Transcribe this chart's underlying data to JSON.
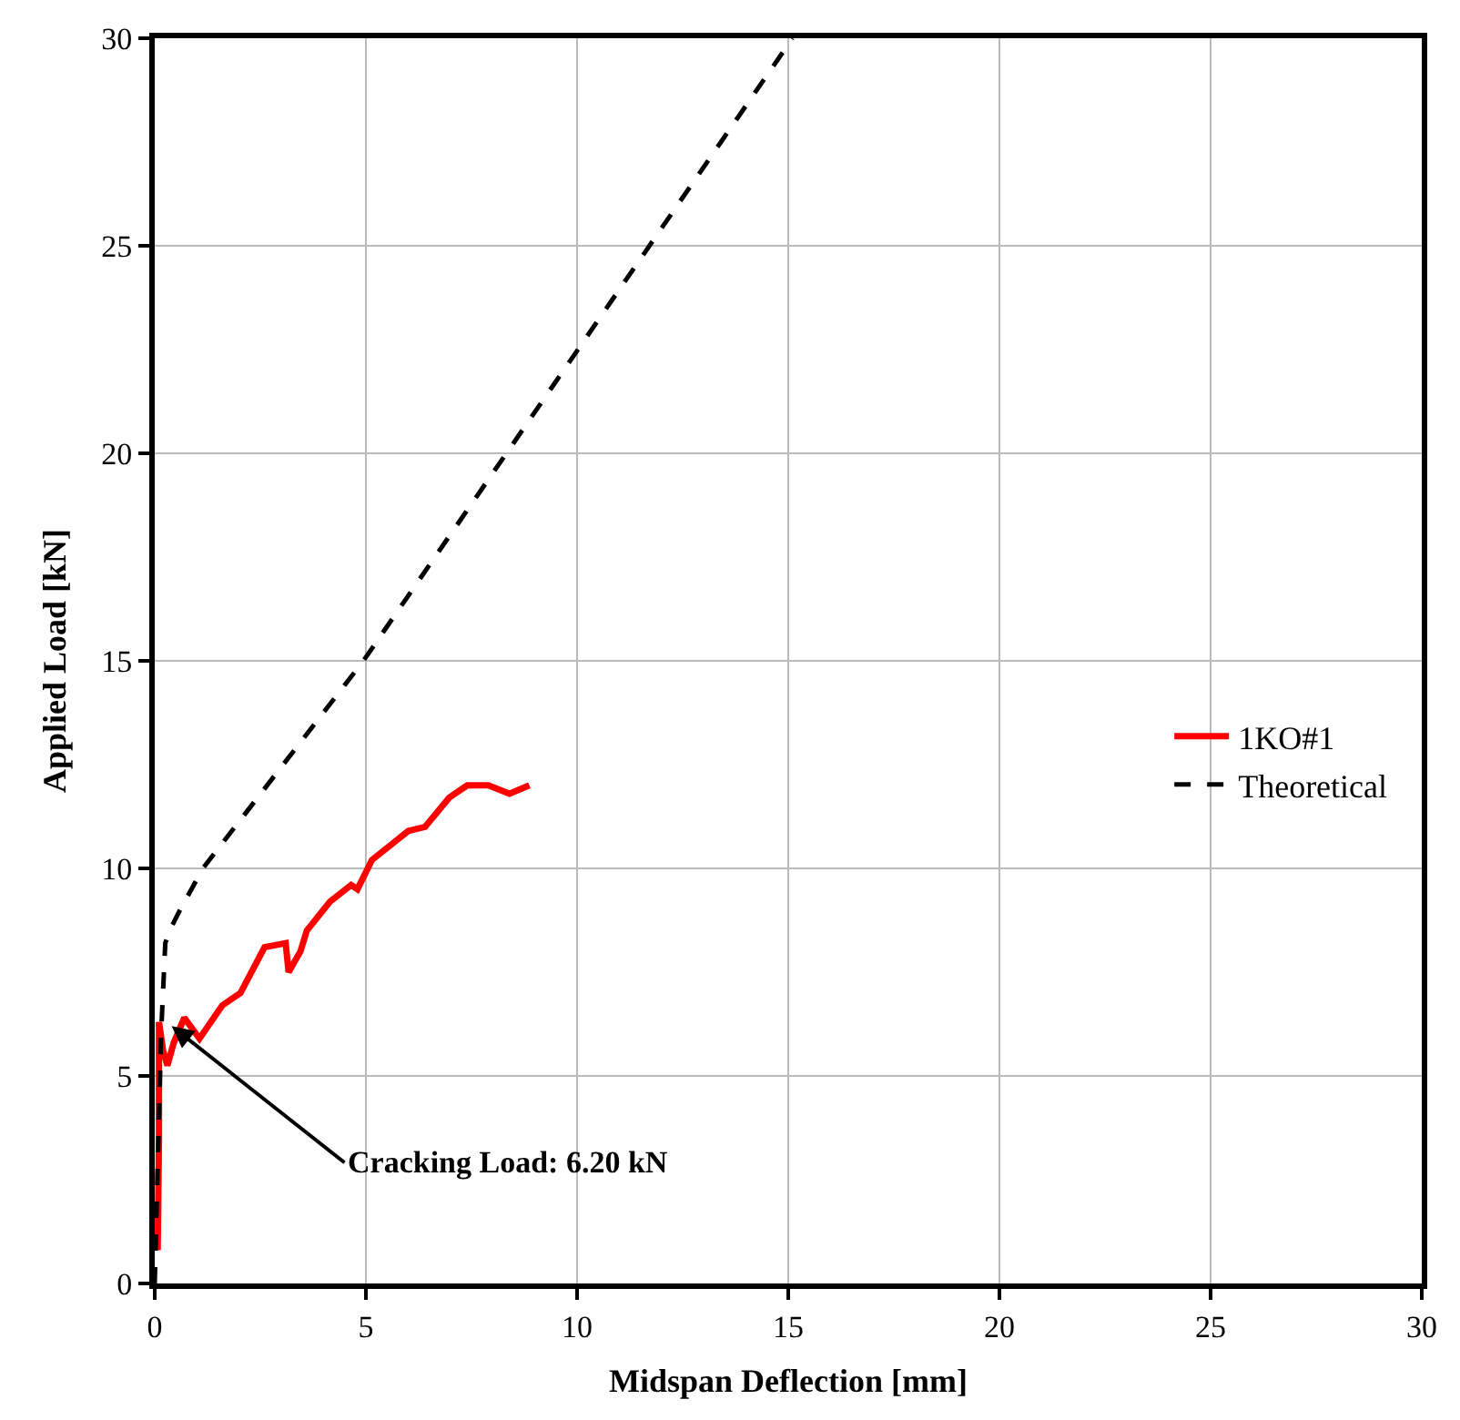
{
  "chart_data": {
    "type": "line",
    "xlabel": "Midspan Deflection [mm]",
    "ylabel": "Applied Load [kN]",
    "xlim": [
      0,
      30
    ],
    "ylim": [
      0,
      30
    ],
    "xticks": [
      0,
      5,
      10,
      15,
      20,
      25,
      30
    ],
    "yticks": [
      0,
      5,
      10,
      15,
      20,
      25,
      30
    ],
    "grid": true,
    "legend": "right",
    "series": [
      {
        "name": "1KO#1",
        "color": "#ff0000",
        "line_style": "solid",
        "x": [
          0.07,
          0.1,
          0.1,
          0.2,
          0.3,
          0.45,
          0.7,
          1.06,
          1.6,
          2.03,
          2.6,
          3.1,
          3.17,
          3.45,
          3.6,
          4.15,
          4.65,
          4.8,
          5.14,
          6.0,
          6.4,
          6.97,
          7.4,
          7.9,
          8.4,
          8.87
        ],
        "values": [
          0.8,
          3.5,
          6.3,
          5.6,
          5.25,
          5.8,
          6.4,
          5.9,
          6.7,
          7.0,
          8.1,
          8.2,
          7.5,
          8.0,
          8.5,
          9.2,
          9.6,
          9.5,
          10.2,
          10.9,
          11.0,
          11.7,
          12.0,
          12.0,
          11.8,
          12.0
        ]
      },
      {
        "name": "Theoretical",
        "color": "#000000",
        "line_style": "dashed",
        "x": [
          0,
          0.15,
          0.25,
          0.35,
          0.6,
          1.14,
          4.94,
          15.1
        ],
        "values": [
          0,
          6.0,
          8.2,
          8.5,
          9.0,
          10.0,
          15.0,
          30.0
        ]
      }
    ],
    "annotations": [
      {
        "text": "Cracking Load: 6.20 kN",
        "x": 0.4,
        "y": 6.2
      }
    ]
  }
}
